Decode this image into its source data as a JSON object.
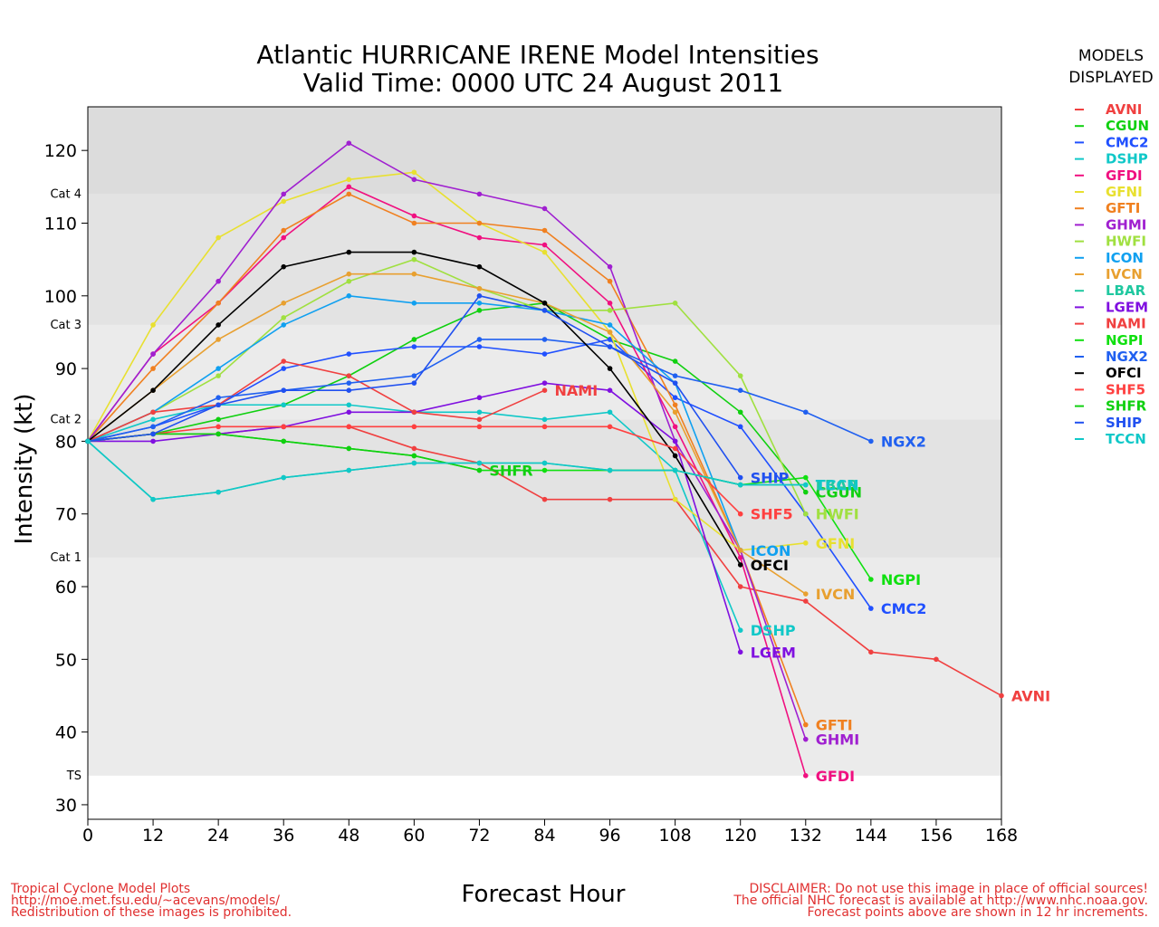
{
  "page": {
    "title_line1": "Atlantic HURRICANE IRENE Model Intensities",
    "title_line2": "Valid Time: 0000 UTC 24 August 2011",
    "legend_heading_line1": "MODELS",
    "legend_heading_line2": "DISPLAYED",
    "footer_left": [
      "Tropical Cyclone Model Plots",
      "http://moe.met.fsu.edu/~acevans/models/",
      "Redistribution of these images is prohibited."
    ],
    "footer_right": [
      "DISCLAIMER: Do not use this image in place of official sources!",
      "The official NHC forecast is available at http://www.nhc.noaa.gov.",
      "Forecast points above are shown in 12 hr increments."
    ]
  },
  "chart_data": {
    "type": "line",
    "title": "Atlantic HURRICANE IRENE Model Intensities",
    "subtitle": "Valid Time: 0000 UTC 24 August 2011",
    "xlabel": "Forecast Hour",
    "ylabel": "Intensity (kt)",
    "xlim": [
      0,
      168
    ],
    "ylim": [
      28,
      126
    ],
    "x_ticks": [
      0,
      12,
      24,
      36,
      48,
      60,
      72,
      84,
      96,
      108,
      120,
      132,
      144,
      156,
      168
    ],
    "y_ticks": [
      30,
      40,
      50,
      60,
      70,
      80,
      90,
      100,
      110,
      120
    ],
    "grid": false,
    "legend_position": "right",
    "categories_bands": [
      {
        "label": "TS",
        "from": 34,
        "to": 64,
        "color": "#ebebeb"
      },
      {
        "label": "Cat 1",
        "from": 64,
        "to": 83,
        "color": "#e3e3e3"
      },
      {
        "label": "Cat 2",
        "from": 83,
        "to": 96,
        "color": "#ebebeb"
      },
      {
        "label": "Cat 3",
        "from": 96,
        "to": 114,
        "color": "#e3e3e3"
      },
      {
        "label": "Cat 4",
        "from": 114,
        "to": 126,
        "color": "#dcdcdc"
      }
    ],
    "series": [
      {
        "name": "AVNI",
        "color": "#f04040",
        "label_side": "right",
        "x": [
          0,
          12,
          24,
          36,
          48,
          60,
          72,
          84,
          96,
          108,
          120,
          132,
          144,
          156,
          168
        ],
        "y": [
          80,
          81,
          81,
          82,
          82,
          79,
          77,
          72,
          72,
          72,
          60,
          58,
          51,
          50,
          45
        ]
      },
      {
        "name": "CGUN",
        "color": "#10d010",
        "label_side": "right",
        "x": [
          0,
          12,
          24,
          36,
          48,
          60,
          72,
          84,
          96,
          108,
          120,
          132
        ],
        "y": [
          80,
          81,
          83,
          85,
          89,
          94,
          98,
          99,
          94,
          91,
          84,
          73
        ]
      },
      {
        "name": "CMC2",
        "color": "#2050ff",
        "label_side": "right",
        "x": [
          0,
          12,
          24,
          36,
          48,
          60,
          72,
          84,
          96,
          108,
          120,
          132,
          144
        ],
        "y": [
          80,
          82,
          85,
          90,
          92,
          93,
          93,
          92,
          94,
          86,
          82,
          70,
          57
        ]
      },
      {
        "name": "DSHP",
        "color": "#10c8c8",
        "label_side": "right",
        "x": [
          0,
          12,
          24,
          36,
          48,
          60,
          72,
          84,
          96,
          108,
          120
        ],
        "y": [
          80,
          83,
          85,
          85,
          85,
          84,
          84,
          83,
          84,
          76,
          54
        ]
      },
      {
        "name": "GFDI",
        "color": "#f01080",
        "label_side": "right",
        "x": [
          0,
          12,
          24,
          36,
          48,
          60,
          72,
          84,
          96,
          108,
          120,
          132
        ],
        "y": [
          80,
          92,
          99,
          108,
          115,
          111,
          108,
          107,
          99,
          82,
          64,
          34
        ]
      },
      {
        "name": "GFNI",
        "color": "#e8e030",
        "label_side": "right",
        "x": [
          0,
          12,
          24,
          36,
          48,
          60,
          72,
          84,
          96,
          108,
          120,
          132
        ],
        "y": [
          80,
          96,
          108,
          113,
          116,
          117,
          110,
          106,
          95,
          72,
          65,
          66
        ]
      },
      {
        "name": "GFTI",
        "color": "#f08020",
        "label_side": "right",
        "x": [
          0,
          12,
          24,
          36,
          48,
          60,
          72,
          84,
          96,
          108,
          120,
          132
        ],
        "y": [
          80,
          90,
          99,
          109,
          114,
          110,
          110,
          109,
          102,
          85,
          65,
          41
        ]
      },
      {
        "name": "GHMI",
        "color": "#a020d0",
        "label_side": "right",
        "x": [
          0,
          12,
          24,
          36,
          48,
          60,
          72,
          84,
          96,
          108,
          120,
          132
        ],
        "y": [
          80,
          92,
          102,
          114,
          121,
          116,
          114,
          112,
          104,
          80,
          65,
          39
        ]
      },
      {
        "name": "HWFI",
        "color": "#a0e040",
        "label_side": "right",
        "x": [
          0,
          12,
          24,
          36,
          48,
          60,
          72,
          84,
          96,
          108,
          120,
          132
        ],
        "y": [
          80,
          84,
          89,
          97,
          102,
          105,
          101,
          98,
          98,
          99,
          89,
          70
        ]
      },
      {
        "name": "ICON",
        "color": "#10a0f0",
        "label_side": "right",
        "x": [
          0,
          12,
          24,
          36,
          48,
          60,
          72,
          84,
          96,
          108,
          120
        ],
        "y": [
          80,
          84,
          90,
          96,
          100,
          99,
          99,
          98,
          96,
          88,
          65
        ]
      },
      {
        "name": "IVCN",
        "color": "#e8a030",
        "label_side": "right",
        "x": [
          0,
          12,
          24,
          36,
          48,
          60,
          72,
          84,
          96,
          108,
          120,
          132
        ],
        "y": [
          80,
          87,
          94,
          99,
          103,
          103,
          101,
          99,
          95,
          84,
          65,
          59
        ]
      },
      {
        "name": "LBAR",
        "color": "#20c8a0",
        "label_side": "right",
        "x": [
          0,
          12,
          24,
          36,
          48,
          60,
          72,
          84,
          96,
          108,
          120,
          132
        ],
        "y": [
          80,
          72,
          73,
          75,
          76,
          77,
          77,
          77,
          76,
          76,
          74,
          74
        ]
      },
      {
        "name": "LGEM",
        "color": "#8010e0",
        "label_side": "right",
        "x": [
          0,
          12,
          24,
          36,
          48,
          60,
          72,
          84,
          96,
          108,
          120
        ],
        "y": [
          80,
          80,
          81,
          82,
          84,
          84,
          86,
          88,
          87,
          80,
          51
        ]
      },
      {
        "name": "NAMI",
        "color": "#f04040",
        "label_side": "right",
        "x": [
          0,
          12,
          24,
          36,
          48,
          60,
          72,
          84
        ],
        "y": [
          80,
          84,
          85,
          91,
          89,
          84,
          83,
          87
        ]
      },
      {
        "name": "NGPI",
        "color": "#10e010",
        "label_side": "right",
        "x": [
          0,
          12,
          24,
          36,
          48,
          60,
          72,
          84,
          96,
          108,
          120,
          132,
          144
        ],
        "y": [
          80,
          81,
          81,
          80,
          79,
          78,
          76,
          76,
          76,
          76,
          74,
          75,
          61
        ]
      },
      {
        "name": "NGX2",
        "color": "#2060f0",
        "label_side": "right",
        "x": [
          0,
          12,
          24,
          36,
          48,
          60,
          72,
          84,
          96,
          108,
          120,
          132,
          144
        ],
        "y": [
          80,
          82,
          86,
          87,
          88,
          89,
          94,
          94,
          93,
          89,
          87,
          84,
          80
        ]
      },
      {
        "name": "OFCI",
        "color": "#000000",
        "label_side": "right",
        "x": [
          0,
          12,
          24,
          36,
          48,
          60,
          72,
          84,
          96,
          108,
          120
        ],
        "y": [
          80,
          87,
          96,
          104,
          106,
          106,
          104,
          99,
          90,
          78,
          63
        ]
      },
      {
        "name": "SHF5",
        "color": "#ff4040",
        "label_side": "right",
        "x": [
          0,
          12,
          24,
          36,
          48,
          60,
          72,
          84,
          96,
          108,
          120
        ],
        "y": [
          80,
          81,
          82,
          82,
          82,
          82,
          82,
          82,
          82,
          79,
          70
        ]
      },
      {
        "name": "SHFR",
        "color": "#10d010",
        "label_side": "right",
        "x": [
          0,
          12,
          24,
          36,
          48,
          60,
          72
        ],
        "y": [
          80,
          81,
          81,
          80,
          79,
          78,
          76
        ]
      },
      {
        "name": "SHIP",
        "color": "#2050f0",
        "label_side": "right",
        "x": [
          0,
          12,
          24,
          36,
          48,
          60,
          72,
          84,
          96,
          108,
          120
        ],
        "y": [
          80,
          81,
          85,
          87,
          87,
          88,
          100,
          98,
          93,
          88,
          75
        ]
      },
      {
        "name": "TCCN",
        "color": "#10c8c8",
        "label_side": "right",
        "x": [
          0,
          12,
          24,
          36,
          48,
          60,
          72,
          84,
          96,
          108,
          120,
          132
        ],
        "y": [
          80,
          72,
          73,
          75,
          76,
          77,
          77,
          77,
          76,
          76,
          74,
          74
        ]
      }
    ]
  },
  "icons": {}
}
